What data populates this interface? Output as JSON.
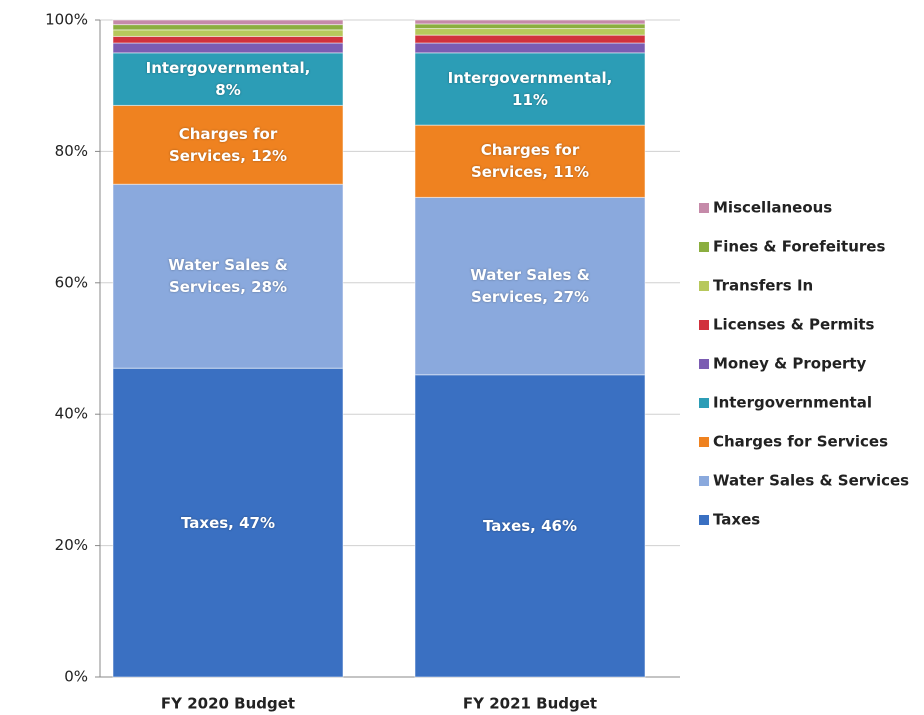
{
  "chart_data": {
    "type": "stacked_bar",
    "categories": [
      "FY 2020 Budget",
      "FY 2021 Budget"
    ],
    "ylim": [
      0,
      100
    ],
    "yticks": [
      {
        "value": 0,
        "label": "0%"
      },
      {
        "value": 20,
        "label": "20%"
      },
      {
        "value": 40,
        "label": "40%"
      },
      {
        "value": 60,
        "label": "60%"
      },
      {
        "value": 80,
        "label": "80%"
      },
      {
        "value": 100,
        "label": "100%"
      }
    ],
    "grid": true,
    "legend": "right",
    "series": [
      {
        "name": "Taxes",
        "color": "#3a70c2",
        "values": [
          47,
          46
        ],
        "value_labels": [
          "Taxes, 47%",
          "Taxes, 46%"
        ]
      },
      {
        "name": "Water Sales & Services",
        "color": "#8aa9dd",
        "values": [
          28,
          27
        ],
        "value_labels": [
          "Water Sales & Services, 28%",
          "Water Sales & Services, 27%"
        ]
      },
      {
        "name": "Charges for Services",
        "color": "#ef8220",
        "values": [
          12,
          11
        ],
        "value_labels": [
          "Charges for Services, 12%",
          "Charges for Services, 11%"
        ]
      },
      {
        "name": "Intergovernmental",
        "color": "#2c9db6",
        "values": [
          8,
          11
        ],
        "value_labels": [
          "Intergovernmental, 8%",
          "Intergovernmental, 11%"
        ]
      },
      {
        "name": "Money & Property",
        "color": "#7b5cb2",
        "values": [
          1.5,
          1.5
        ]
      },
      {
        "name": "Licenses & Permits",
        "color": "#d1313c",
        "values": [
          1,
          1.2
        ]
      },
      {
        "name": "Transfers In",
        "color": "#b7c85c",
        "values": [
          1,
          1
        ]
      },
      {
        "name": "Fines & Forefeitures",
        "color": "#8bae3f",
        "values": [
          0.8,
          0.7
        ]
      },
      {
        "name": "Miscellaneous",
        "color": "#c58aa9",
        "values": [
          0.7,
          0.6
        ]
      }
    ]
  }
}
